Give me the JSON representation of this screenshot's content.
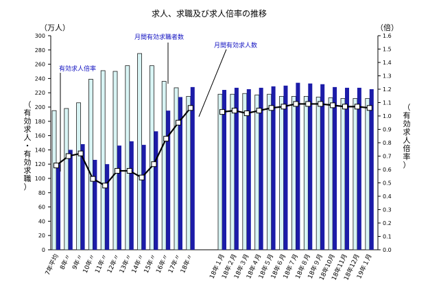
{
  "chart_data": {
    "type": "bar",
    "title": "求人、求職及び求人倍率の推移",
    "left_unit": "（万人）",
    "right_unit": "（倍）",
    "ylabel_left": "（有効求人・有効求職）",
    "ylabel_right": "（有効求人倍率）",
    "ylim_left": [
      0,
      300
    ],
    "ylim_right": [
      0,
      1.6
    ],
    "left_ticks": [
      "0",
      "20",
      "40",
      "60",
      "80",
      "100",
      "120",
      "140",
      "160",
      "180",
      "200",
      "220",
      "240",
      "260",
      "280",
      "300"
    ],
    "right_ticks": [
      "0.0",
      "0.1",
      "0.2",
      "0.3",
      "0.4",
      "0.5",
      "0.6",
      "0.7",
      "0.8",
      "0.9",
      "1.0",
      "1.1",
      "1.2",
      "1.3",
      "1.4",
      "1.5",
      "1.6"
    ],
    "annotations": {
      "ratio": "有効求人倍率",
      "seekers": "月間有効求職者数",
      "openings": "月間有効求人数"
    },
    "groups": [
      {
        "categories": [
          "7年平均",
          "8年〃",
          "9年〃",
          "10年〃",
          "11年〃",
          "12年〃",
          "13年〃",
          "14年〃",
          "15年〃",
          "16年〃",
          "17年〃",
          "18年〃"
        ],
        "seekers": [
          195,
          198,
          206,
          239,
          251,
          250,
          258,
          275,
          258,
          236,
          227,
          215
        ],
        "openings": [
          120,
          140,
          148,
          126,
          120,
          146,
          152,
          147,
          166,
          195,
          214,
          228
        ],
        "ratio": [
          0.63,
          0.7,
          0.72,
          0.53,
          0.48,
          0.59,
          0.59,
          0.54,
          0.64,
          0.83,
          0.95,
          1.06
        ]
      },
      {
        "categories": [
          "18年１月",
          "18年２月",
          "18年３月",
          "18年４月",
          "18年５月",
          "18年６月",
          "18年７月",
          "18年８月",
          "18年９月",
          "18年10月",
          "18年11月",
          "18年12月",
          "19年１月"
        ],
        "seekers": [
          218,
          218,
          219,
          217,
          218,
          215,
          215,
          215,
          214,
          213,
          212,
          212,
          212
        ],
        "openings": [
          224,
          227,
          225,
          227,
          229,
          230,
          234,
          233,
          232,
          228,
          227,
          227,
          225
        ],
        "ratio": [
          1.03,
          1.04,
          1.02,
          1.04,
          1.06,
          1.07,
          1.09,
          1.09,
          1.09,
          1.08,
          1.07,
          1.07,
          1.06
        ]
      }
    ],
    "colors": {
      "seekers_fill": "#d8f4f4",
      "seekers_stroke": "#1a1a1a",
      "openings_fill": "#1c1ca8",
      "ratio_line": "#000000",
      "ratio_marker_fill": "#ffffff",
      "annotation_text": "#1010c0"
    }
  }
}
